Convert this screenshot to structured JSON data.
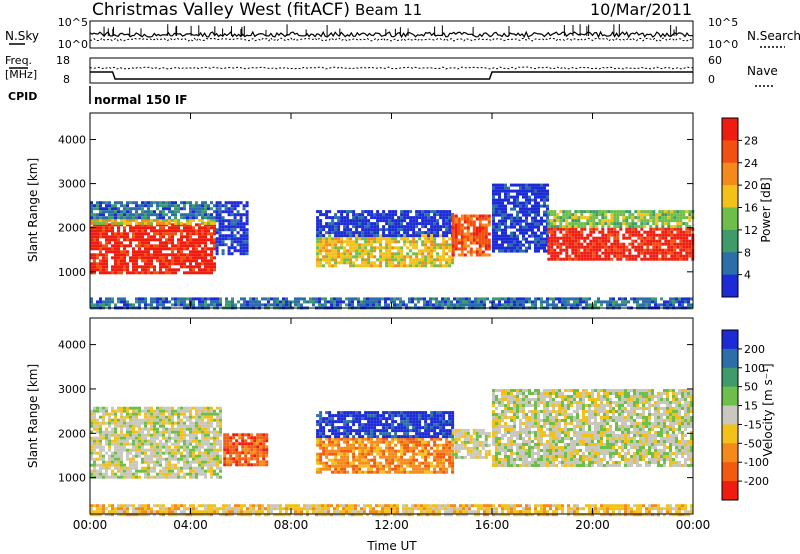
{
  "header": {
    "title": "Christmas Valley West (fitACF)",
    "beam": "Beam 11",
    "date": "10/Mar/2011",
    "cpid_label": "CPID",
    "cpid_value": "normal 150 IF"
  },
  "summary_panels": {
    "noise": {
      "left_label": "N.Sky",
      "right_label": "N.Search",
      "left_ticks": [
        "10^5",
        "10^0"
      ],
      "right_ticks": [
        "10^5",
        "10^0"
      ]
    },
    "freq": {
      "left_label_1": "Freq.",
      "left_label_2": "[MHz]",
      "right_label": "Nave",
      "left_ticks": [
        "18",
        "8"
      ],
      "right_ticks": [
        "60",
        "0"
      ],
      "freq_series": [
        {
          "t": 0,
          "mhz": 12.4
        },
        {
          "t": 0.9,
          "mhz": 12.4
        },
        {
          "t": 1.0,
          "mhz": 9.6
        },
        {
          "t": 15.9,
          "mhz": 9.6
        },
        {
          "t": 16.0,
          "mhz": 12.4
        },
        {
          "t": 24,
          "mhz": 12.4
        }
      ]
    }
  },
  "colors": {
    "power_scale": [
      "#1c2bd6",
      "#2b6ea8",
      "#3f9c6a",
      "#6dbf4a",
      "#f2c21a",
      "#f48a1a",
      "#f25010",
      "#ef1c10"
    ],
    "velocity_scale": [
      "#ef1c10",
      "#f25a10",
      "#f48a1a",
      "#f2c21a",
      "#c8c8c0",
      "#6dbf4a",
      "#3f9c6a",
      "#2b6ea8",
      "#1c2bd6"
    ],
    "ground_scatter": "#c8c8c0"
  },
  "chart_data": [
    {
      "type": "heatmap",
      "panel": "power",
      "ylabel": "Slant Range [km]",
      "xlabel": "",
      "xlim": [
        0,
        24
      ],
      "ylim": [
        180,
        4600
      ],
      "x_ticks": [
        0,
        4,
        8,
        12,
        16,
        20,
        24
      ],
      "y_ticks": [
        1000,
        2000,
        3000,
        4000
      ],
      "colorbar": {
        "label": "Power [dB]",
        "range": [
          0,
          32
        ],
        "ticks": [
          "4",
          "8",
          "12",
          "16",
          "20",
          "24",
          "28"
        ]
      },
      "regions": [
        {
          "t0": 0.0,
          "t1": 4.9,
          "r0": 1000,
          "r1": 2100,
          "level": 7
        },
        {
          "t0": 0.0,
          "t1": 4.9,
          "r0": 2100,
          "r1": 2200,
          "level": 4
        },
        {
          "t0": 0.0,
          "t1": 4.9,
          "r0": 2200,
          "r1": 2600,
          "level": 1
        },
        {
          "t0": 5.0,
          "t1": 6.2,
          "r0": 1400,
          "r1": 2600,
          "level": 0
        },
        {
          "t0": 9.0,
          "t1": 14.4,
          "r0": 1150,
          "r1": 1850,
          "level": 4
        },
        {
          "t0": 9.0,
          "t1": 14.4,
          "r0": 1850,
          "r1": 2400,
          "level": 0
        },
        {
          "t0": 14.4,
          "t1": 15.9,
          "r0": 1400,
          "r1": 2300,
          "level": 6
        },
        {
          "t0": 16.0,
          "t1": 18.2,
          "r0": 1500,
          "r1": 3000,
          "level": 0
        },
        {
          "t0": 18.2,
          "t1": 24.0,
          "r0": 1300,
          "r1": 2000,
          "level": 7
        },
        {
          "t0": 18.2,
          "t1": 24.0,
          "r0": 2000,
          "r1": 2400,
          "level": 3
        }
      ],
      "near_range_band": {
        "t0": 0,
        "t1": 24,
        "r0": 180,
        "r1": 420,
        "level": 1
      }
    },
    {
      "type": "heatmap",
      "panel": "velocity",
      "ylabel": "Slant Range [km]",
      "xlabel": "Time UT",
      "xlim": [
        0,
        24
      ],
      "ylim": [
        180,
        4600
      ],
      "x_ticks": [
        0,
        4,
        8,
        12,
        16,
        20,
        24
      ],
      "x_tick_labels": [
        "00:00",
        "04:00",
        "08:00",
        "12:00",
        "16:00",
        "20:00",
        "00:00"
      ],
      "y_ticks": [
        1000,
        2000,
        3000,
        4000
      ],
      "colorbar": {
        "label": "Velocity [m s⁻¹]",
        "range": [
          -250,
          250
        ],
        "ticks": [
          "200",
          "100",
          "50",
          "15",
          "-15",
          "-50",
          "-100",
          "-200"
        ]
      },
      "regions": [
        {
          "t0": 0.0,
          "t1": 5.2,
          "r0": 1000,
          "r1": 2600,
          "level": 4
        },
        {
          "t0": 5.3,
          "t1": 7.0,
          "r0": 1300,
          "r1": 2000,
          "level": 1
        },
        {
          "t0": 9.0,
          "t1": 14.4,
          "r0": 1150,
          "r1": 1900,
          "level": 2
        },
        {
          "t0": 9.0,
          "t1": 14.4,
          "r0": 1900,
          "r1": 2500,
          "level": 8
        },
        {
          "t0": 14.4,
          "t1": 15.9,
          "r0": 1450,
          "r1": 2100,
          "level": 4
        },
        {
          "t0": 16.0,
          "t1": 24.0,
          "r0": 1300,
          "r1": 3000,
          "level": 4
        }
      ],
      "near_range_band": {
        "t0": 0,
        "t1": 24,
        "r0": 180,
        "r1": 400,
        "level": 3
      }
    }
  ]
}
